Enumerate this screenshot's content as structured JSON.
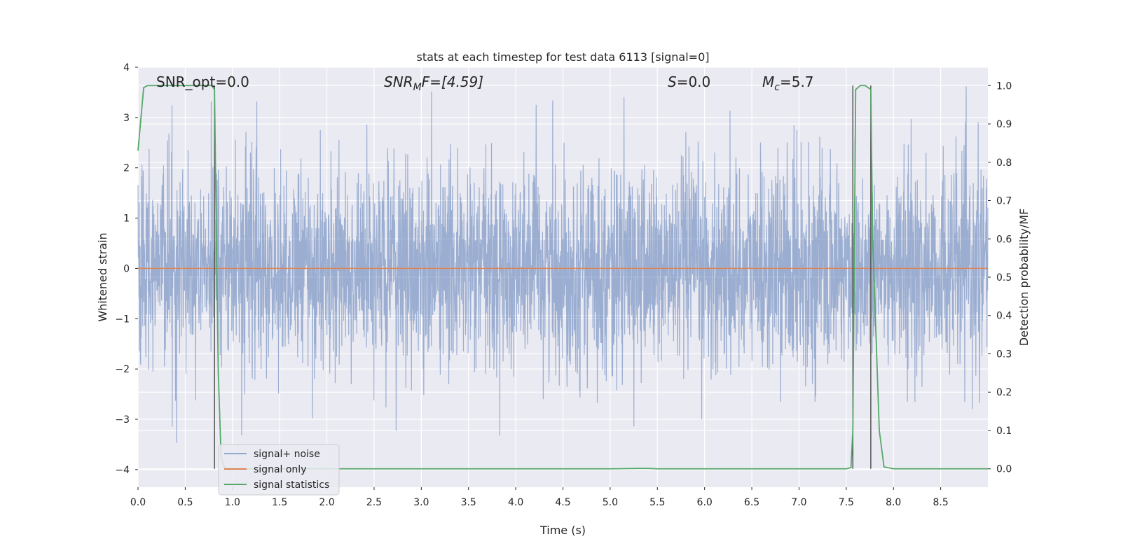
{
  "chart_data": {
    "type": "line",
    "title": "stats at each timestep for test data 6113 [signal=0]",
    "xlabel": "Time (s)",
    "ylabel": "Whitened strain",
    "y2label": "Detection probability/MF",
    "xlim": [
      0.0,
      9.0
    ],
    "ylim": [
      -4.35,
      4.0
    ],
    "y2lim": [
      -0.048,
      1.048
    ],
    "x_ticks": [
      0.0,
      0.5,
      1.0,
      1.5,
      2.0,
      2.5,
      3.0,
      3.5,
      4.0,
      4.5,
      5.0,
      5.5,
      6.0,
      6.5,
      7.0,
      7.5,
      8.0,
      8.5
    ],
    "x_tick_labels": [
      "0.0",
      "0.5",
      "1.0",
      "1.5",
      "2.0",
      "2.5",
      "3.0",
      "3.5",
      "4.0",
      "4.5",
      "5.0",
      "5.5",
      "6.0",
      "6.5",
      "7.0",
      "7.5",
      "8.0",
      "8.5"
    ],
    "y_ticks": [
      4,
      3,
      2,
      1,
      0,
      -1,
      -2,
      -3,
      -4
    ],
    "y_tick_labels": [
      "4",
      "3",
      "2",
      "1",
      "0",
      "−1",
      "−2",
      "−3",
      "−4"
    ],
    "y2_ticks": [
      1.0,
      0.9,
      0.8,
      0.7,
      0.6,
      0.5,
      0.4,
      0.3,
      0.2,
      0.1,
      0.0
    ],
    "y2_tick_labels": [
      "1.0",
      "0.9",
      "0.8",
      "0.7",
      "0.6",
      "0.5",
      "0.4",
      "0.3",
      "0.2",
      "0.1",
      "0.0"
    ],
    "grid": true,
    "legend_position": "lower-left",
    "colors": {
      "background": "#eaeaf2",
      "grid": "#ffffff",
      "noise": "#4c72b0",
      "signal": "#dd8452",
      "stats": "#55a868",
      "vline": "#555555"
    },
    "annotations": {
      "snr_opt": "SNR_opt=0.0",
      "snr_mf_main": "SNR",
      "snr_mf_sub": "M",
      "snr_mf_rest": "F=[4.59]",
      "s_main": "S",
      "s_rest": "=0.0",
      "mc_main": "M",
      "mc_sub": "c",
      "mc_rest": "=5.7"
    },
    "vertical_lines_x": [
      0.81,
      7.57,
      7.76
    ],
    "series": [
      {
        "name": "signal+ noise",
        "description_values": "dense whitened noise, roughly within ±2.5, peaks near ±3.6",
        "seed": 6113,
        "n_points": 3600,
        "sigma": 1.0
      },
      {
        "name": "signal only",
        "x": [
          0.0,
          9.0
        ],
        "y": [
          0.0,
          0.0
        ]
      },
      {
        "name": "signal statistics",
        "x": [
          0.0,
          0.06,
          0.1,
          0.2,
          0.4,
          0.6,
          0.78,
          0.81,
          0.83,
          0.85,
          0.88,
          0.92,
          1.0,
          2.0,
          3.0,
          4.0,
          5.0,
          5.3,
          5.4,
          5.5,
          6.0,
          7.0,
          7.5,
          7.55,
          7.57,
          7.6,
          7.65,
          7.7,
          7.76,
          7.78,
          7.85,
          7.9,
          8.0,
          8.5,
          9.0
        ],
        "y": [
          0.83,
          0.995,
          1.0,
          1.0,
          1.0,
          1.0,
          1.0,
          0.99,
          0.6,
          0.25,
          0.03,
          0.0,
          0.0,
          0.0,
          0.0,
          0.0,
          0.0,
          0.001,
          0.001,
          0.0,
          0.0,
          0.0,
          0.0,
          0.003,
          0.1,
          0.99,
          1.0,
          1.0,
          0.99,
          0.6,
          0.1,
          0.005,
          0.0,
          0.0,
          0.0
        ]
      }
    ]
  }
}
